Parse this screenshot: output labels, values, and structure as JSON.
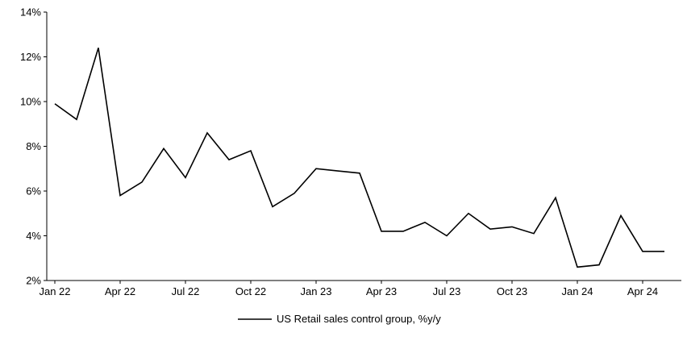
{
  "chart_data": {
    "type": "line",
    "title": "",
    "legend": "US Retail sales control group, %y/y",
    "xlabel": "",
    "ylabel": "",
    "ylim": [
      2,
      14
    ],
    "ytick_step": 2,
    "ytick_labels": [
      "2%",
      "4%",
      "6%",
      "8%",
      "10%",
      "12%",
      "14%"
    ],
    "xtick_every": 3,
    "grid": false,
    "legend_position": "bottom-center",
    "line_color": "#000000",
    "axis_color": "#000000",
    "background_color": "#ffffff",
    "x": [
      "Jan 22",
      "Feb 22",
      "Mar 22",
      "Apr 22",
      "May 22",
      "Jun 22",
      "Jul 22",
      "Aug 22",
      "Sep 22",
      "Oct 22",
      "Nov 22",
      "Dec 22",
      "Jan 23",
      "Feb 23",
      "Mar 23",
      "Apr 23",
      "May 23",
      "Jun 23",
      "Jul 23",
      "Aug 23",
      "Sep 23",
      "Oct 23",
      "Nov 23",
      "Dec 23",
      "Jan 24",
      "Feb 24",
      "Mar 24",
      "Apr 24",
      "May 24"
    ],
    "values": [
      9.9,
      9.2,
      12.4,
      5.8,
      6.4,
      7.9,
      6.6,
      8.6,
      7.4,
      7.8,
      5.3,
      5.9,
      7.0,
      6.9,
      6.8,
      4.2,
      4.2,
      4.6,
      4.0,
      5.0,
      4.3,
      4.4,
      4.1,
      5.7,
      2.6,
      2.7,
      4.9,
      3.3,
      3.3
    ]
  }
}
